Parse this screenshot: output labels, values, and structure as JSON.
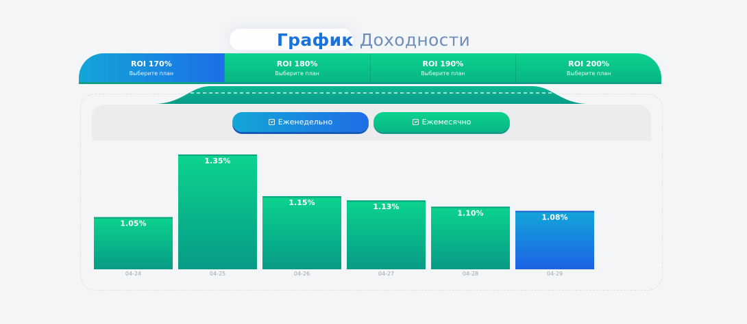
{
  "header": {
    "title_part1": "График",
    "title_part2": "Доходности"
  },
  "plans": [
    {
      "title": "ROI 170%",
      "subtitle": "Выберите план",
      "active": true
    },
    {
      "title": "ROI 180%",
      "subtitle": "Выберите план",
      "active": false
    },
    {
      "title": "ROI 190%",
      "subtitle": "Выберите план",
      "active": false
    },
    {
      "title": "ROI 200%",
      "subtitle": "Выберите план",
      "active": false
    }
  ],
  "filters": {
    "weekly_label": "Еженедельно",
    "monthly_label": "Ежемесячно",
    "selected": "weekly"
  },
  "colors": {
    "green": "#0bd38e",
    "green_dark": "#08a985",
    "blue": "#1d6fe6",
    "blue_light": "#12a6d8",
    "title_blue": "#1a73d9",
    "title_muted": "#6f8fb8"
  },
  "icons": {
    "filter_icon": "calendar-check-icon"
  },
  "chart_data": {
    "type": "bar",
    "categories": [
      "04-24",
      "04-25",
      "04-26",
      "04-27",
      "04-28",
      "04-29"
    ],
    "values": [
      1.05,
      1.35,
      1.15,
      1.13,
      1.1,
      1.08
    ],
    "labels": [
      "1.05%",
      "1.35%",
      "1.15%",
      "1.13%",
      "1.10%",
      "1.08%"
    ],
    "highlighted_index": 5,
    "ylim": [
      0.8,
      1.35
    ],
    "grid": false,
    "legend": "none"
  }
}
